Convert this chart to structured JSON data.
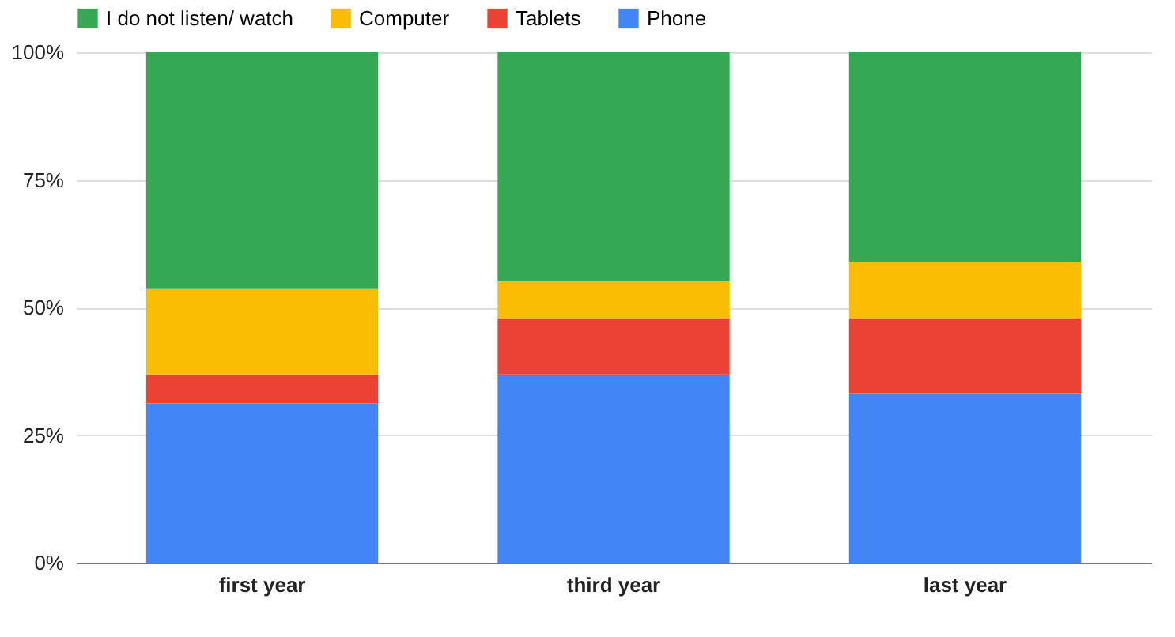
{
  "chart_data": {
    "type": "bar",
    "stacked": true,
    "categories": [
      "first year",
      "third year",
      "last year"
    ],
    "series": [
      {
        "name": "Phone",
        "color": "#4285f4",
        "values": [
          31.2,
          36.9,
          33.2
        ]
      },
      {
        "name": "Tablets",
        "color": "#ea4335",
        "values": [
          5.7,
          11.0,
          14.7
        ]
      },
      {
        "name": "Computer",
        "color": "#fbbc04",
        "values": [
          16.7,
          7.3,
          11.0
        ]
      },
      {
        "name": "I do not listen/ watch",
        "color": "#34a853",
        "values": [
          46.4,
          44.8,
          41.1
        ]
      }
    ],
    "ylim": [
      0,
      100
    ],
    "yticks": [
      {
        "value": 0,
        "label": "0%"
      },
      {
        "value": 25,
        "label": "25%"
      },
      {
        "value": 50,
        "label": "50%"
      },
      {
        "value": 75,
        "label": "75%"
      },
      {
        "value": 100,
        "label": "100%"
      }
    ],
    "grid": "y",
    "legend": "top"
  }
}
